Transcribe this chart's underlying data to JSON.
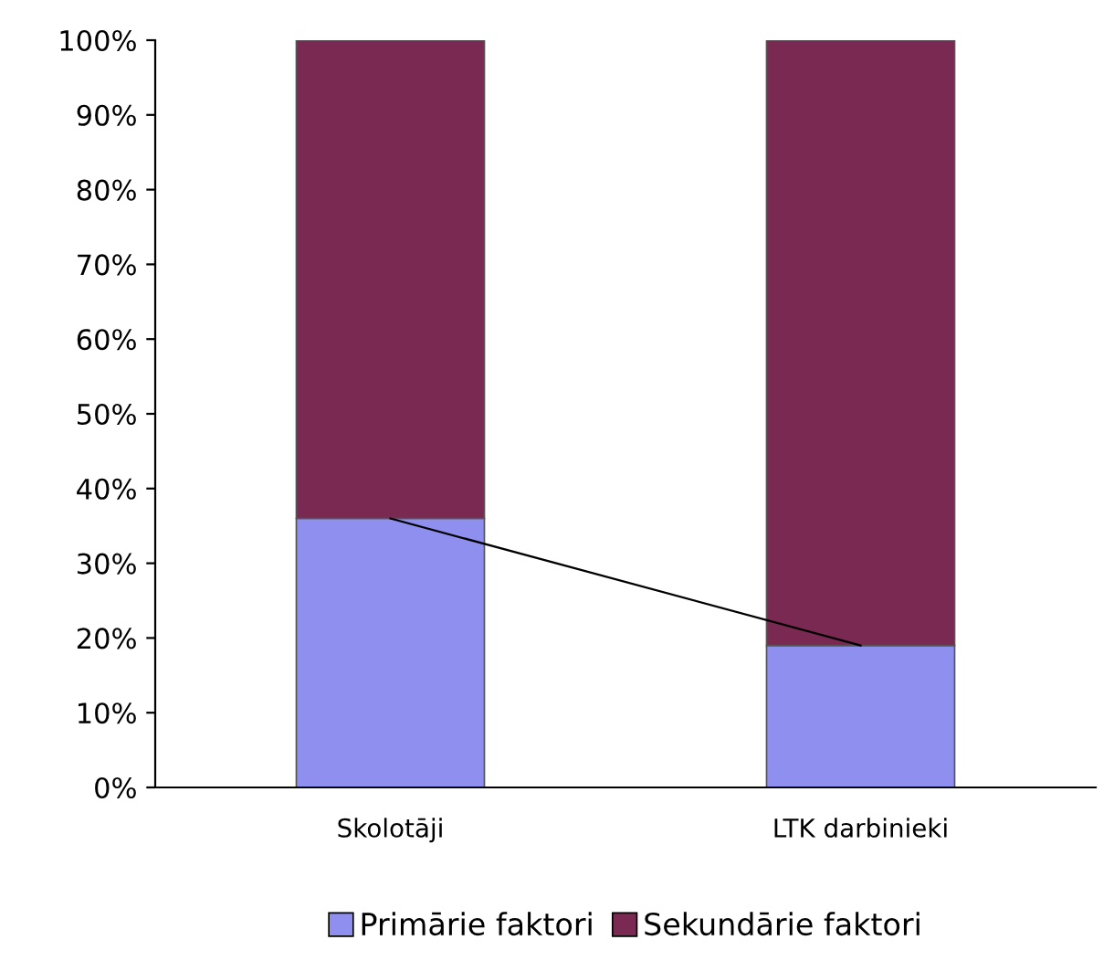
{
  "chart_data": {
    "type": "bar",
    "stacked": true,
    "categories": [
      "Skolotāji",
      "LTK darbinieki"
    ],
    "series": [
      {
        "name": "Primārie faktori",
        "color": "#8f8fef",
        "values": [
          36,
          19
        ]
      },
      {
        "name": "Sekundārie faktori",
        "color": "#7a2a52",
        "values": [
          64,
          81
        ]
      },
      {
        "type": "line",
        "color": "#000000",
        "values": [
          36,
          19
        ]
      }
    ],
    "ylim": [
      0,
      100
    ],
    "yticks": [
      {
        "value": 0,
        "label": "0%"
      },
      {
        "value": 10,
        "label": "10%"
      },
      {
        "value": 20,
        "label": "20%"
      },
      {
        "value": 30,
        "label": "30%"
      },
      {
        "value": 40,
        "label": "40%"
      },
      {
        "value": 50,
        "label": "50%"
      },
      {
        "value": 60,
        "label": "60%"
      },
      {
        "value": 70,
        "label": "70%"
      },
      {
        "value": 80,
        "label": "80%"
      },
      {
        "value": 90,
        "label": "90%"
      },
      {
        "value": 100,
        "label": "100%"
      }
    ],
    "grid": false,
    "legend": "bottom"
  }
}
